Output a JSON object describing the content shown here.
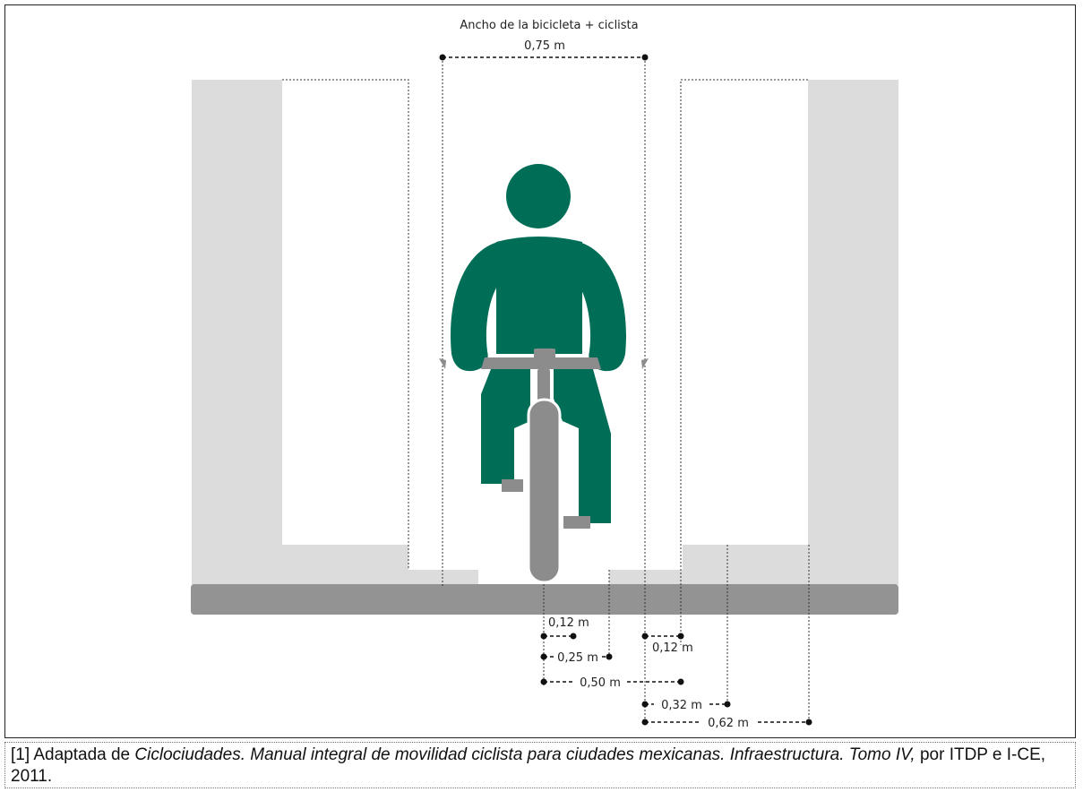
{
  "diagram": {
    "title": "Ancho de la bicicleta + ciclista",
    "top_dimension": "0,75 m",
    "dimensions": {
      "d012a": "0,12 m",
      "d012b": "0,12 m",
      "d025": "0,25 m",
      "d050": "0,50 m",
      "d032": "0,32 m",
      "d062": "0,62 m"
    },
    "colors": {
      "rider": "#006d57",
      "bike": "#8c8c8c",
      "ground": "#939393",
      "wall": "#dcdcdc"
    }
  },
  "caption": {
    "prefix": "[1] Adaptada de ",
    "title_italic": "Ciclociudades. Manual integral de movilidad ciclista para ciudades mexicanas. Infraestructura. Tomo IV,",
    "suffix": " por ITDP e I-CE, 2011."
  }
}
